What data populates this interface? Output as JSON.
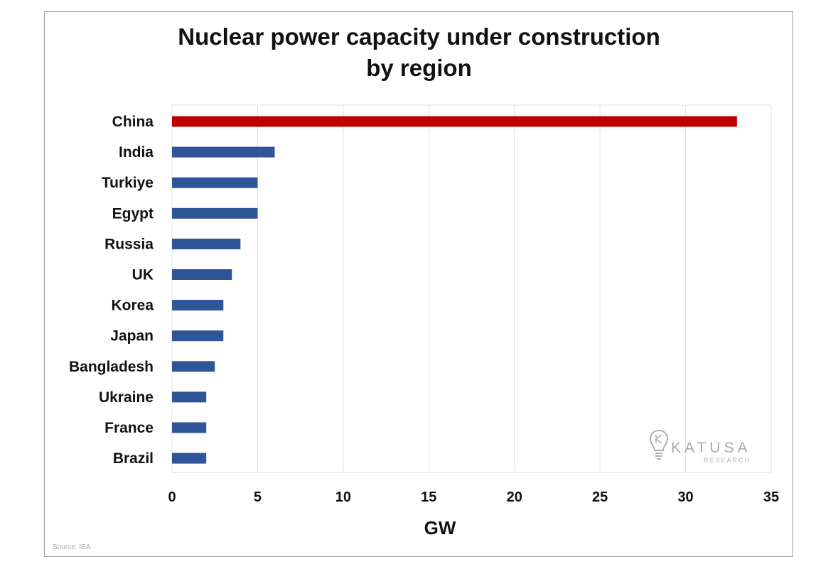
{
  "chart_data": {
    "type": "bar",
    "orientation": "horizontal",
    "title_line1": "Nuclear power capacity under construction",
    "title_line2": "by region",
    "categories": [
      "China",
      "India",
      "Turkiye",
      "Egypt",
      "Russia",
      "UK",
      "Korea",
      "Japan",
      "Bangladesh",
      "Ukraine",
      "France",
      "Brazil"
    ],
    "values": [
      33,
      6,
      5,
      5,
      4,
      3.5,
      3,
      3,
      2.5,
      2,
      2,
      2
    ],
    "bar_colors": [
      "#c00000",
      "#2e5597",
      "#2e5597",
      "#2e5597",
      "#2e5597",
      "#2e5597",
      "#2e5597",
      "#2e5597",
      "#2e5597",
      "#2e5597",
      "#2e5597",
      "#2e5597"
    ],
    "xlabel": "GW",
    "ylabel": "",
    "xlim": [
      0,
      35
    ],
    "xticks": [
      "0",
      "5",
      "10",
      "15",
      "20",
      "25",
      "30",
      "35"
    ],
    "grid": "vertical",
    "legend": "none"
  },
  "source": "Source: IEA",
  "logo": {
    "name": "KATUSA",
    "sub": "RESEARCH"
  },
  "colors": {
    "highlight": "#c00000",
    "bar": "#2e5597",
    "grid": "#e2e2e2"
  }
}
